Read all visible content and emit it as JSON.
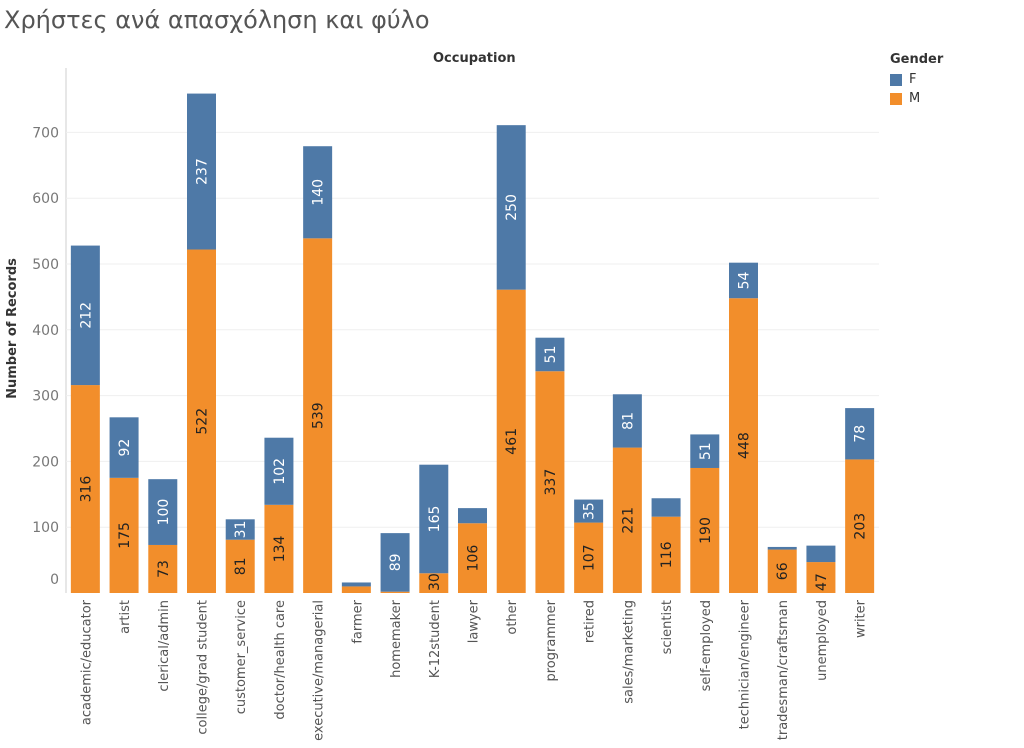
{
  "title": "Χρήστες ανά απασχόληση και φύλο",
  "colors": {
    "F": "#4e79a7",
    "M": "#f28e2b",
    "grid": "#efefef",
    "axis": "#cfcfcf"
  },
  "chart_data": {
    "type": "bar",
    "stacked": true,
    "column_header": "Occupation",
    "ylabel": "Number of Records",
    "ylim": [
      0,
      760
    ],
    "yticks": [
      0,
      100,
      200,
      300,
      400,
      500,
      600,
      700
    ],
    "grid": true,
    "legend": {
      "title": "Gender",
      "placement": "top-right",
      "entries": [
        "F",
        "M"
      ]
    },
    "categories": [
      "academic/educator",
      "artist",
      "clerical/admin",
      "college/grad student",
      "customer_service",
      "doctor/health care",
      "executive/managerial",
      "farmer",
      "homemaker",
      "K-12student",
      "lawyer",
      "other",
      "programmer",
      "retired",
      "sales/marketing",
      "scientist",
      "self-employed",
      "technician/engineer",
      "tradesman/craftsman",
      "unemployed",
      "writer"
    ],
    "series": [
      {
        "name": "M",
        "values": [
          316,
          175,
          73,
          522,
          81,
          134,
          539,
          10,
          2,
          30,
          106,
          461,
          337,
          107,
          221,
          116,
          190,
          448,
          66,
          47,
          203
        ],
        "labels": [
          "316",
          "175",
          "73",
          "522",
          "81",
          "134",
          "539",
          "",
          "",
          "30",
          "106",
          "461",
          "337",
          "107",
          "221",
          "116",
          "190",
          "448",
          "66",
          "47",
          "203"
        ]
      },
      {
        "name": "F",
        "values": [
          212,
          92,
          100,
          237,
          31,
          102,
          140,
          6,
          89,
          165,
          23,
          250,
          51,
          35,
          81,
          28,
          51,
          54,
          4,
          25,
          78
        ],
        "labels": [
          "212",
          "92",
          "100",
          "237",
          "31",
          "102",
          "140",
          "",
          "89",
          "165",
          "",
          "250",
          "51",
          "35",
          "81",
          "",
          "51",
          "54",
          "",
          "",
          "78"
        ]
      }
    ]
  }
}
